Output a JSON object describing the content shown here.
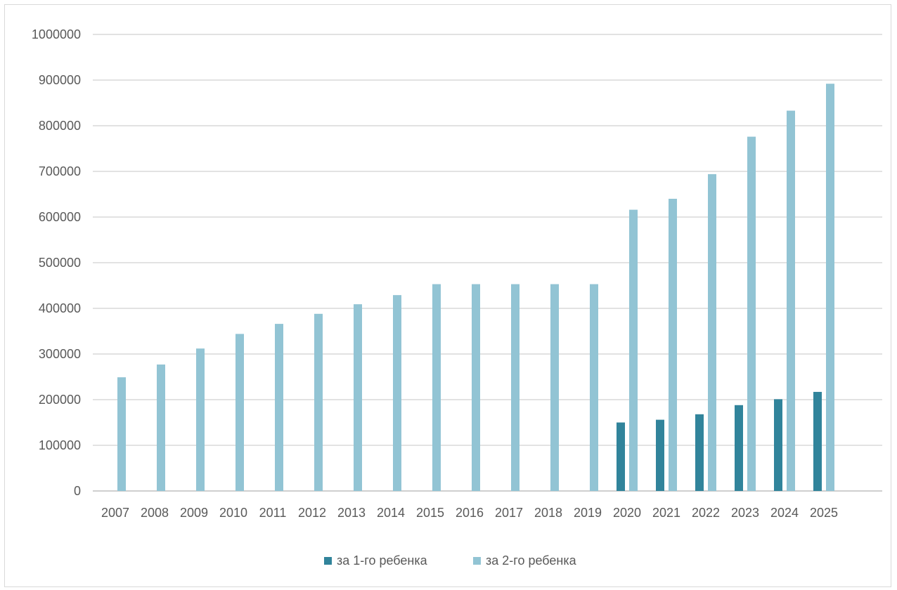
{
  "chart_data": {
    "type": "bar",
    "title": "",
    "xlabel": "",
    "ylabel": "",
    "ylim": [
      0,
      1000000
    ],
    "ytick_step": 100000,
    "y_tick_labels": [
      "0",
      "100000",
      "200000",
      "300000",
      "400000",
      "500000",
      "600000",
      "700000",
      "800000",
      "900000",
      "1000000"
    ],
    "grid": true,
    "legend_position": "bottom",
    "categories": [
      "2007",
      "2008",
      "2009",
      "2010",
      "2011",
      "2012",
      "2013",
      "2014",
      "2015",
      "2016",
      "2017",
      "2018",
      "2019",
      "2020",
      "2021",
      "2022",
      "2023",
      "2024",
      "2025"
    ],
    "series": [
      {
        "name": "за 1-го ребенка",
        "color": "#31849b",
        "values": [
          null,
          null,
          null,
          null,
          null,
          null,
          null,
          null,
          null,
          null,
          null,
          null,
          null,
          150000,
          156000,
          168000,
          188000,
          201000,
          217000
        ]
      },
      {
        "name": "за 2-го ребенка",
        "color": "#92c4d4",
        "values": [
          249000,
          277000,
          312000,
          344000,
          366000,
          388000,
          409000,
          429000,
          453000,
          453000,
          453000,
          453000,
          453000,
          616000,
          640000,
          694000,
          776000,
          833000,
          892000
        ]
      }
    ]
  }
}
